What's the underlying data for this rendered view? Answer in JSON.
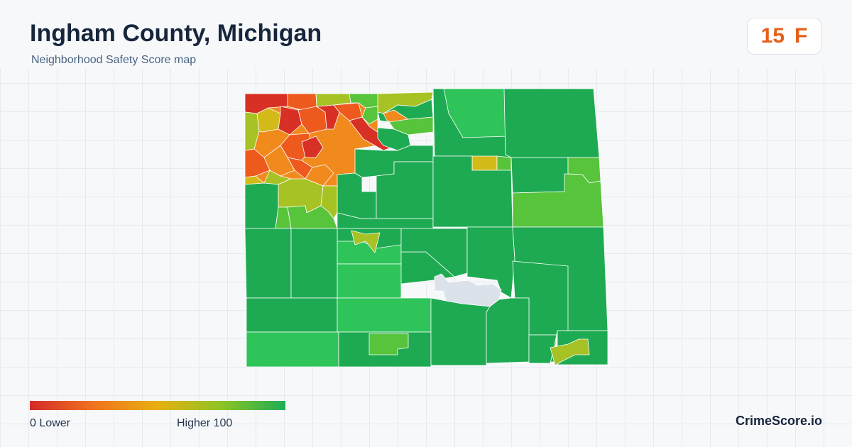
{
  "header": {
    "title": "Ingham County, Michigan",
    "subtitle": "Neighborhood Safety Score map"
  },
  "score_badge": {
    "score": "15",
    "grade": "F",
    "color": "#e4601c"
  },
  "legend": {
    "low_label": "0  Lower",
    "high_label": "Higher  100",
    "colors": [
      "#d42a2a",
      "#f0731e",
      "#e8b012",
      "#8dc425",
      "#1dad55"
    ]
  },
  "brand": "CrimeScore.io",
  "map": {
    "no_data_color": "#dbe2ea",
    "palette": {
      "dark_green": "#1eaa52",
      "green": "#2ec45a",
      "light_green": "#57c43c",
      "yellow_green": "#a7c224",
      "yellow": "#d2bb18",
      "orange": "#f08a1c",
      "red_orange": "#ee5a1e",
      "red": "#d93025"
    }
  }
}
